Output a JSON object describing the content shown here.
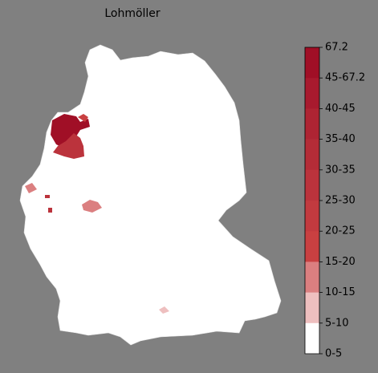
{
  "title": "Lohmöller",
  "colorbar": {
    "labels": [
      "67.2",
      "45-67.2",
      "40-45",
      "35-40",
      "30-35",
      "25-30",
      "20-25",
      "15-20",
      "10-15",
      "5-10",
      "0-5"
    ],
    "colors": [
      "#a00f26",
      "#a81a2e",
      "#ae2433",
      "#b42c37",
      "#bb333c",
      "#c23a3f",
      "#c94041",
      "#db7f80",
      "#eebfbf",
      "#ffffff"
    ]
  }
}
